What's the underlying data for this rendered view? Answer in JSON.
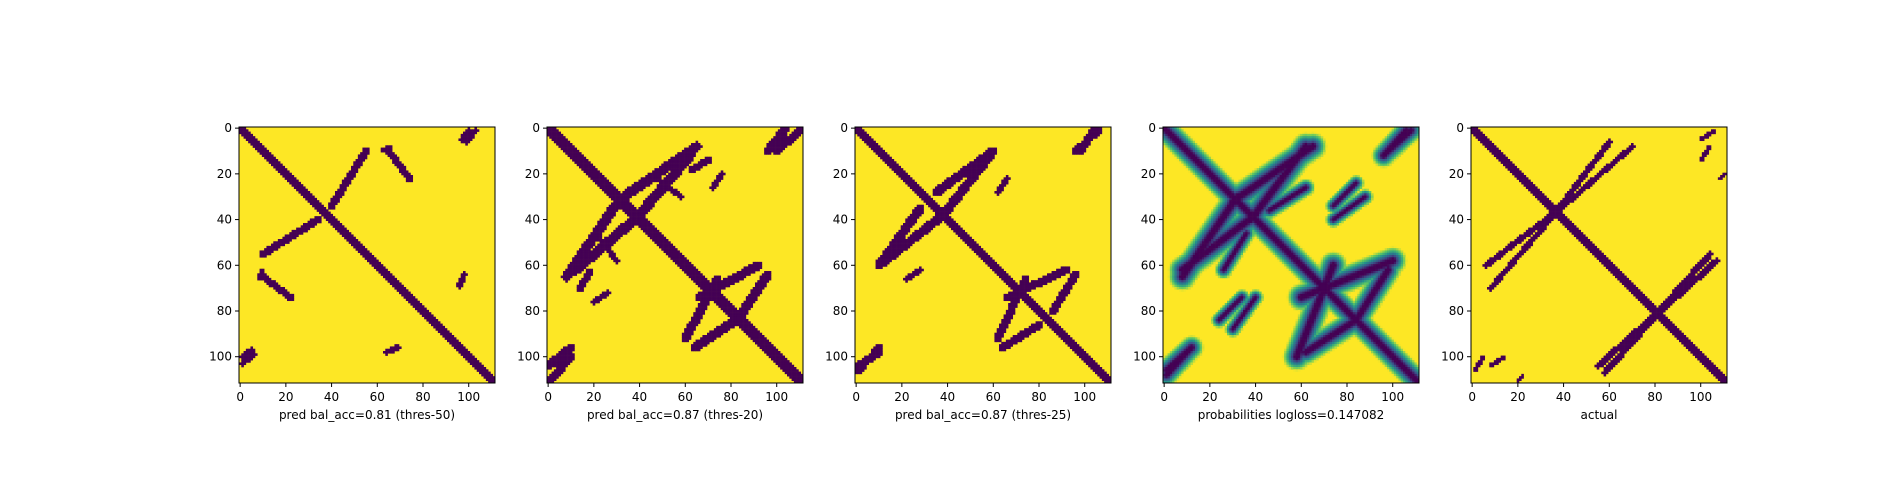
{
  "figure_colors": {
    "background": "#ffffff",
    "foreground": "#fde725",
    "contact": "#440154",
    "mid": "#21918c"
  },
  "tick_values": [
    "0",
    "20",
    "40",
    "60",
    "80",
    "100"
  ],
  "chart_data": [
    {
      "type": "heatmap",
      "name": "pred-50",
      "xlabel": "pred bal_acc=0.81 (thres-50)",
      "size": 112,
      "xlim": [
        0,
        111
      ],
      "ylim": [
        111,
        0
      ],
      "xticks": [
        0,
        20,
        40,
        60,
        80,
        100
      ],
      "yticks": [
        0,
        20,
        40,
        60,
        80,
        100
      ],
      "colormap": "viridis",
      "value_range": [
        0,
        1
      ],
      "grid": false,
      "diagonal_width": 2,
      "contacts": [
        {
          "x": [
            65,
            74
          ],
          "y": [
            10,
            22
          ],
          "width": 1.6
        },
        {
          "x": [
            10,
            34
          ],
          "y": [
            55,
            40
          ],
          "width": 1.6
        },
        {
          "x": [
            97,
            100
          ],
          "y": [
            5,
            1
          ],
          "width": 1.2
        },
        {
          "x": [
            96,
            98
          ],
          "y": [
            68,
            64
          ],
          "width": 1.2
        },
        {
          "x": [
            64,
            69
          ],
          "y": [
            98,
            96
          ],
          "width": 1.2
        },
        {
          "x": [
            1,
            6
          ],
          "y": [
            103,
            99
          ],
          "width": 1.2
        },
        {
          "x": [
            8,
            10
          ],
          "y": [
            66,
            62
          ],
          "width": 1.0
        }
      ],
      "soft": false
    },
    {
      "type": "heatmap",
      "name": "pred-20",
      "xlabel": "pred bal_acc=0.87 (thres-20)",
      "size": 112,
      "xlim": [
        0,
        111
      ],
      "ylim": [
        111,
        0
      ],
      "xticks": [
        0,
        20,
        40,
        60,
        80,
        100
      ],
      "yticks": [
        0,
        20,
        40,
        60,
        80,
        100
      ],
      "colormap": "viridis",
      "value_range": [
        0,
        1
      ],
      "grid": false,
      "diagonal_width": 2.2,
      "contacts": [
        {
          "x": [
            33,
            65
          ],
          "y": [
            30,
            8
          ],
          "width": 2.2
        },
        {
          "x": [
            12,
            40
          ],
          "y": [
            62,
            38
          ],
          "width": 2.2
        },
        {
          "x": [
            100,
            110
          ],
          "y": [
            10,
            1
          ],
          "width": 1.8
        },
        {
          "x": [
            66,
            92
          ],
          "y": [
            74,
            60
          ],
          "width": 2.0
        },
        {
          "x": [
            64,
            82
          ],
          "y": [
            96,
            84
          ],
          "width": 2.0
        },
        {
          "x": [
            0,
            10
          ],
          "y": [
            104,
            96
          ],
          "width": 2.0
        },
        {
          "x": [
            63,
            70
          ],
          "y": [
            18,
            14
          ],
          "width": 1.5
        },
        {
          "x": [
            48,
            58
          ],
          "y": [
            22,
            30
          ],
          "width": 1.2
        },
        {
          "x": [
            20,
            26
          ],
          "y": [
            76,
            72
          ],
          "width": 1.2
        }
      ],
      "soft": false
    },
    {
      "type": "heatmap",
      "name": "pred-25",
      "xlabel": "pred bal_acc=0.87 (thres-25)",
      "size": 112,
      "xlim": [
        0,
        111
      ],
      "ylim": [
        111,
        0
      ],
      "xticks": [
        0,
        20,
        40,
        60,
        80,
        100
      ],
      "yticks": [
        0,
        20,
        40,
        60,
        80,
        100
      ],
      "colormap": "viridis",
      "value_range": [
        0,
        1
      ],
      "grid": false,
      "diagonal_width": 2.1,
      "contacts": [
        {
          "x": [
            35,
            60
          ],
          "y": [
            28,
            10
          ],
          "width": 2.0
        },
        {
          "x": [
            10,
            38
          ],
          "y": [
            60,
            38
          ],
          "width": 2.0
        },
        {
          "x": [
            96,
            106
          ],
          "y": [
            10,
            1
          ],
          "width": 1.6
        },
        {
          "x": [
            66,
            92
          ],
          "y": [
            74,
            62
          ],
          "width": 1.8
        },
        {
          "x": [
            64,
            80
          ],
          "y": [
            96,
            86
          ],
          "width": 1.8
        },
        {
          "x": [
            1,
            10
          ],
          "y": [
            104,
            98
          ],
          "width": 1.8
        },
        {
          "x": [
            22,
            28
          ],
          "y": [
            66,
            62
          ],
          "width": 1.2
        }
      ],
      "soft": false
    },
    {
      "type": "heatmap",
      "name": "probabilities",
      "xlabel": "probabilities logloss=0.147082",
      "size": 112,
      "xlim": [
        0,
        111
      ],
      "ylim": [
        111,
        0
      ],
      "xticks": [
        0,
        20,
        40,
        60,
        80,
        100
      ],
      "yticks": [
        0,
        20,
        40,
        60,
        80,
        100
      ],
      "colormap": "viridis",
      "value_range": [
        0,
        1
      ],
      "grid": false,
      "diagonal_width": 2.6,
      "contacts": [
        {
          "x": [
            30,
            65
          ],
          "y": [
            32,
            8
          ],
          "width": 2.8
        },
        {
          "x": [
            8,
            40
          ],
          "y": [
            62,
            38
          ],
          "width": 2.8
        },
        {
          "x": [
            98,
            108
          ],
          "y": [
            10,
            1
          ],
          "width": 2.4
        },
        {
          "x": [
            60,
            100
          ],
          "y": [
            74,
            58
          ],
          "width": 2.8
        },
        {
          "x": [
            62,
            84
          ],
          "y": [
            98,
            84
          ],
          "width": 2.6
        },
        {
          "x": [
            1,
            12
          ],
          "y": [
            106,
            96
          ],
          "width": 2.4
        },
        {
          "x": [
            46,
            62
          ],
          "y": [
            36,
            26
          ],
          "width": 1.8
        },
        {
          "x": [
            74,
            88
          ],
          "y": [
            40,
            30
          ],
          "width": 1.6
        },
        {
          "x": [
            24,
            34
          ],
          "y": [
            84,
            74
          ],
          "width": 1.6
        }
      ],
      "soft": true
    },
    {
      "type": "heatmap",
      "name": "actual",
      "xlabel": "actual",
      "size": 112,
      "xlim": [
        0,
        111
      ],
      "ylim": [
        111,
        0
      ],
      "xticks": [
        0,
        20,
        40,
        60,
        80,
        100
      ],
      "yticks": [
        0,
        20,
        40,
        60,
        80,
        100
      ],
      "colormap": "viridis",
      "value_range": [
        0,
        1
      ],
      "grid": false,
      "diagonal_width": 1.8,
      "contacts": [
        {
          "x": [
            33,
            70
          ],
          "y": [
            40,
            8
          ],
          "width": 1.2
        },
        {
          "x": [
            6,
            40
          ],
          "y": [
            60,
            34
          ],
          "width": 1.3
        },
        {
          "x": [
            55,
            107
          ],
          "y": [
            104,
            58
          ],
          "width": 1.4
        },
        {
          "x": [
            100,
            106
          ],
          "y": [
            5,
            1
          ],
          "width": 1.0
        },
        {
          "x": [
            8,
            14
          ],
          "y": [
            104,
            100
          ],
          "width": 1.0
        },
        {
          "x": [
            108,
            111
          ],
          "y": [
            22,
            20
          ],
          "width": 0.8
        }
      ],
      "soft": false
    }
  ]
}
